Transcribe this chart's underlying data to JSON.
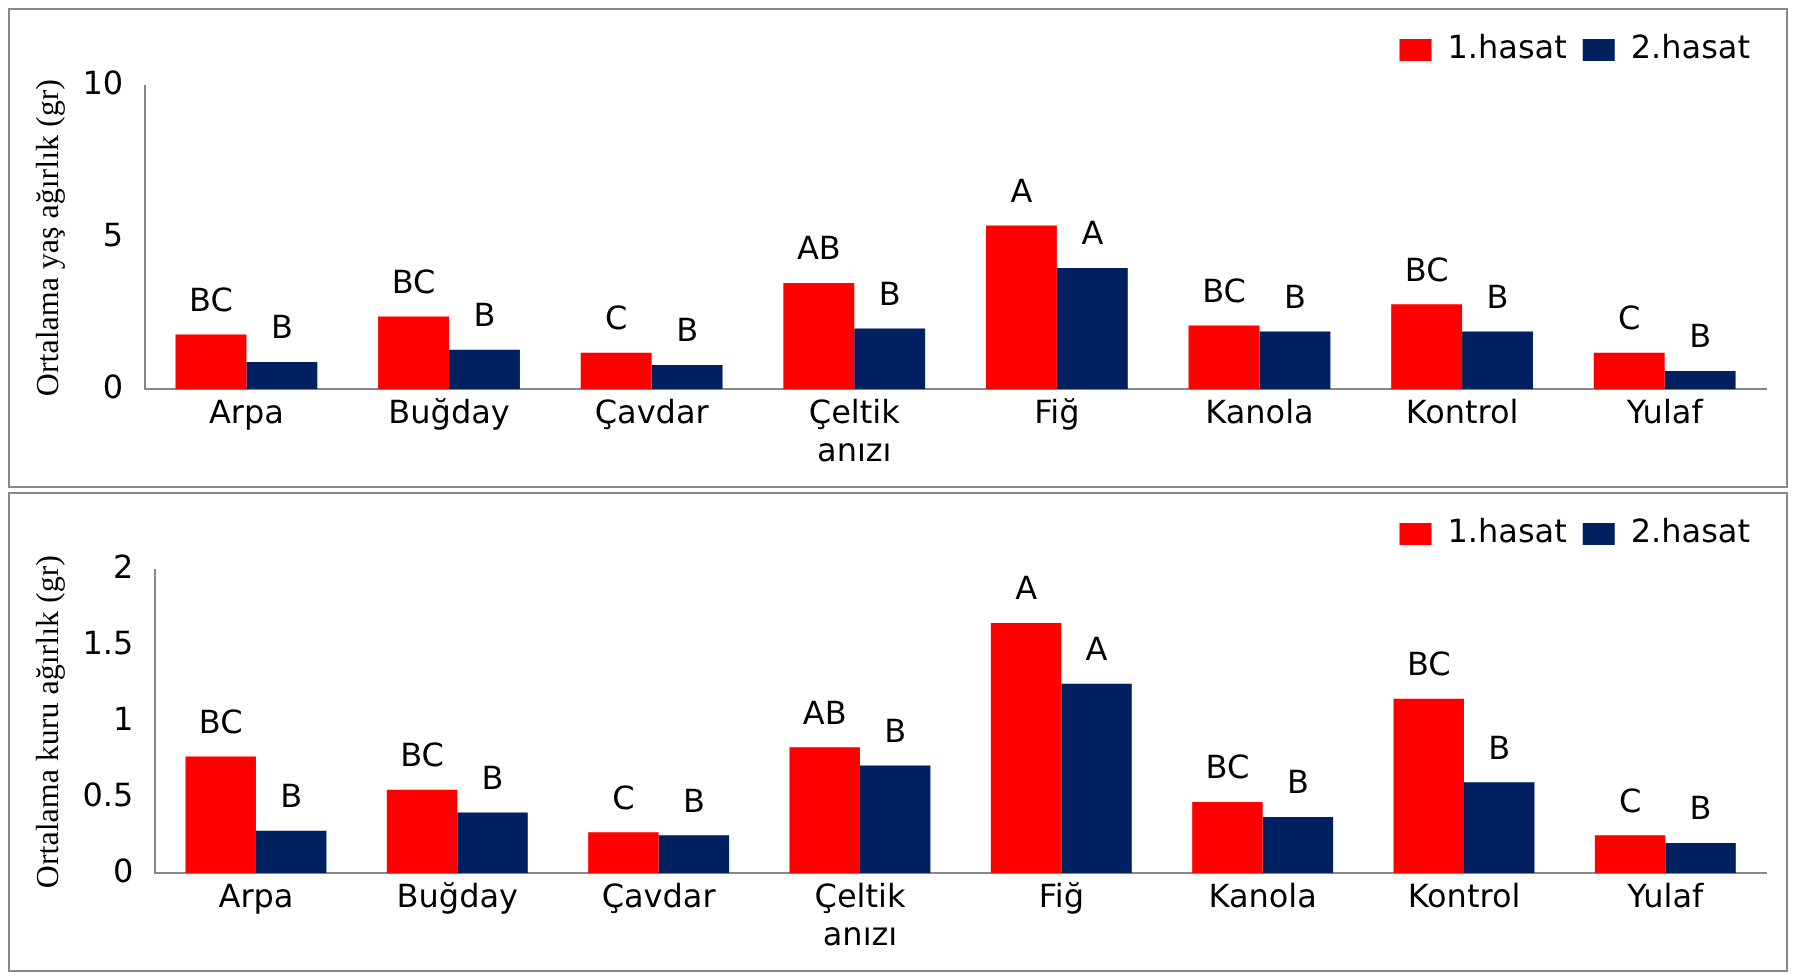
{
  "chart_data": [
    {
      "type": "bar",
      "ylabel": "Ortalama yaş ağırlık (gr)",
      "categories": [
        "Arpa",
        "Buğday",
        "Çavdar",
        "Çeltik anızı",
        "Fiğ",
        "Kanola",
        "Kontrol",
        "Yulaf"
      ],
      "series": [
        {
          "name": "1.hasat",
          "color": "#ff0000",
          "values": [
            1.8,
            2.4,
            1.2,
            3.5,
            5.4,
            2.1,
            2.8,
            1.2
          ],
          "value_labels": [
            "BC",
            "BC",
            "C",
            "AB",
            "A",
            "BC",
            "BC",
            "C"
          ]
        },
        {
          "name": "2.hasat",
          "color": "#002060",
          "values": [
            0.9,
            1.3,
            0.8,
            2.0,
            4.0,
            1.9,
            1.9,
            0.6
          ],
          "value_labels": [
            "B",
            "B",
            "B",
            "B",
            "A",
            "B",
            "B",
            "B"
          ]
        }
      ],
      "ylim": [
        0,
        10
      ],
      "yticks": [
        0,
        5,
        10
      ],
      "grid": false,
      "legend": "top right"
    },
    {
      "type": "bar",
      "ylabel": "Ortalama kuru ağırlık (gr)",
      "categories": [
        "Arpa",
        "Buğday",
        "Çavdar",
        "Çeltik anızı",
        "Fiğ",
        "Kanola",
        "Kontrol",
        "Yulaf"
      ],
      "series": [
        {
          "name": "1.hasat",
          "color": "#ff0000",
          "values": [
            0.77,
            0.55,
            0.27,
            0.83,
            1.65,
            0.47,
            1.15,
            0.25
          ],
          "value_labels": [
            "BC",
            "BC",
            "C",
            "AB",
            "A",
            "BC",
            "BC",
            "C"
          ]
        },
        {
          "name": "2.hasat",
          "color": "#002060",
          "values": [
            0.28,
            0.4,
            0.25,
            0.71,
            1.25,
            0.37,
            0.6,
            0.2
          ],
          "value_labels": [
            "B",
            "B",
            "B",
            "B",
            "A",
            "B",
            "B",
            "B"
          ]
        }
      ],
      "ylim": [
        0,
        2
      ],
      "yticks": [
        0,
        0.5,
        1,
        1.5,
        2
      ],
      "grid": false,
      "legend": "top right"
    }
  ]
}
